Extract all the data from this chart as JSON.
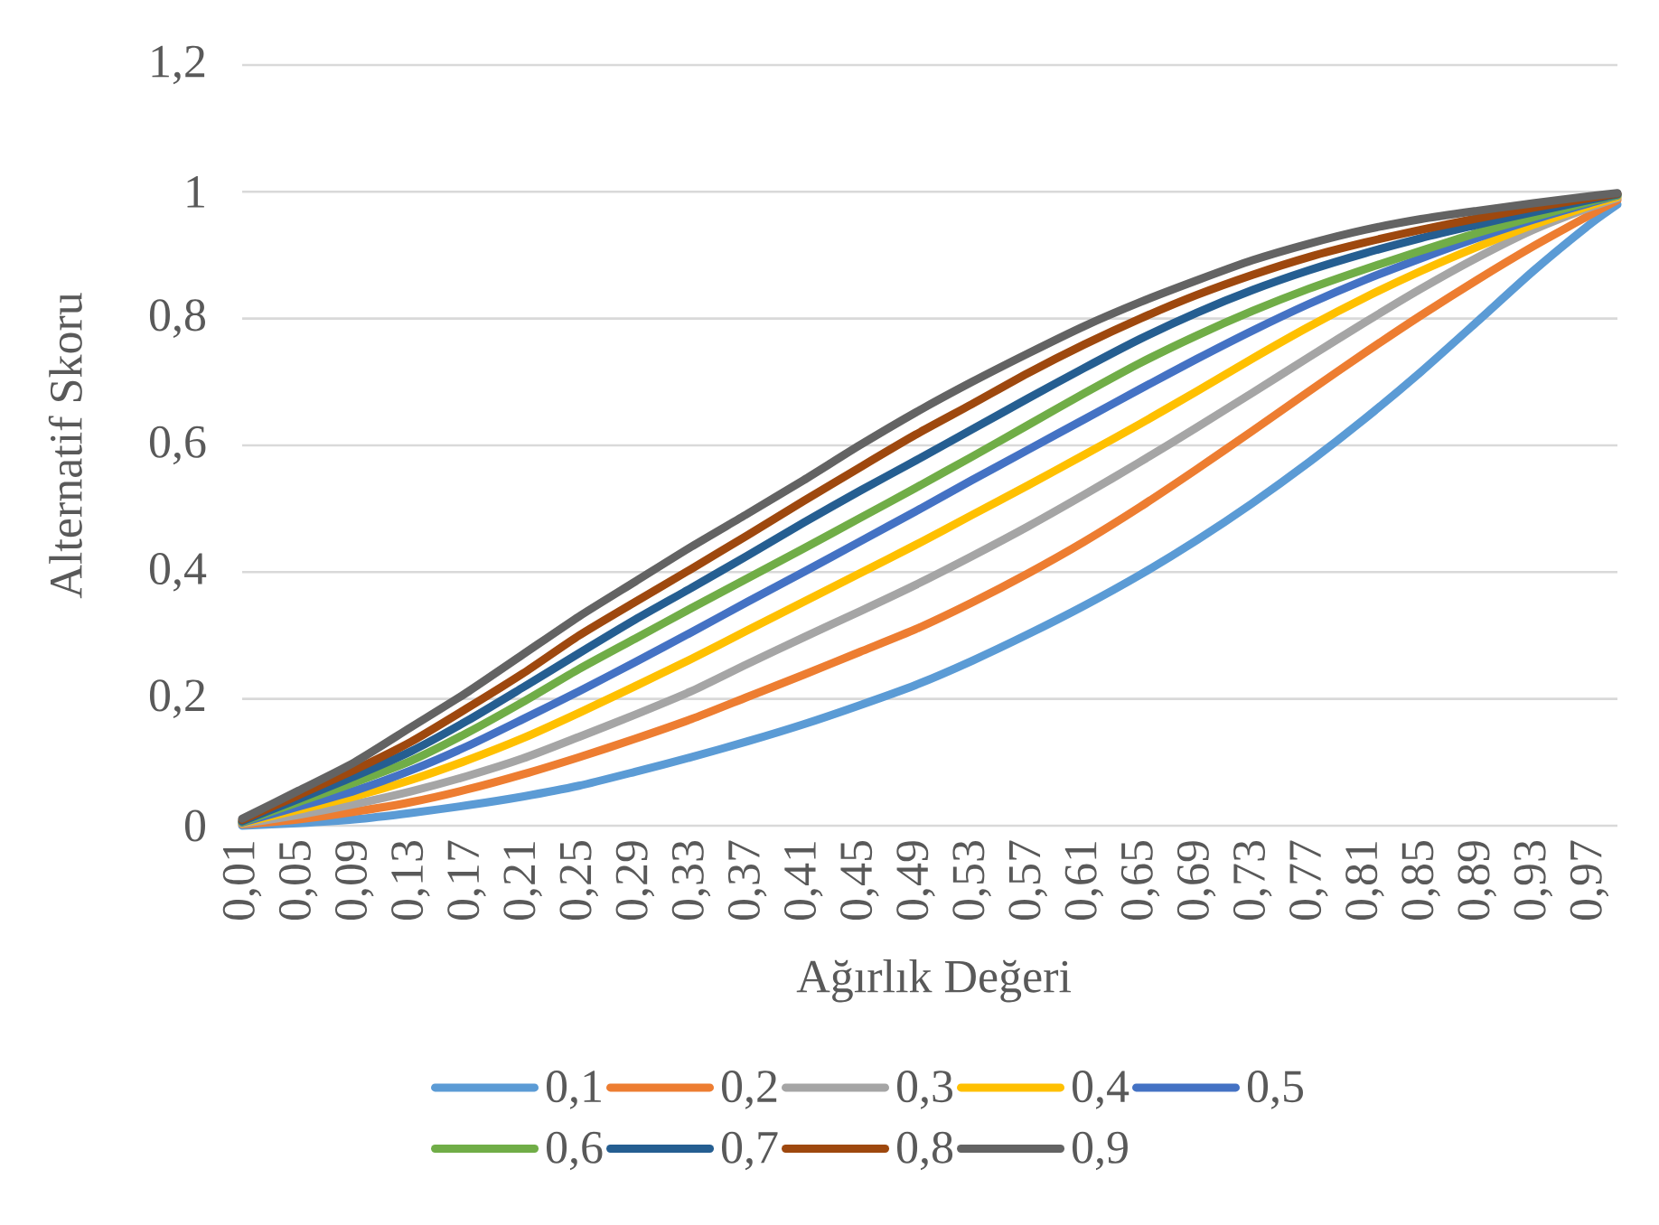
{
  "chart_data": {
    "type": "line",
    "xlabel": "Ağırlık Değeri",
    "ylabel": "Alternatif Skoru",
    "x": [
      0.01,
      0.05,
      0.09,
      0.13,
      0.17,
      0.21,
      0.25,
      0.29,
      0.33,
      0.37,
      0.41,
      0.45,
      0.49,
      0.53,
      0.57,
      0.61,
      0.65,
      0.69,
      0.73,
      0.77,
      0.81,
      0.85,
      0.89,
      0.93,
      0.97,
      0.99
    ],
    "xlim": [
      0.01,
      0.99
    ],
    "xticks": [
      {
        "value": 0.01,
        "label": "0,01"
      },
      {
        "value": 0.05,
        "label": "0,05"
      },
      {
        "value": 0.09,
        "label": "0,09"
      },
      {
        "value": 0.13,
        "label": "0,13"
      },
      {
        "value": 0.17,
        "label": "0,17"
      },
      {
        "value": 0.21,
        "label": "0,21"
      },
      {
        "value": 0.25,
        "label": "0,25"
      },
      {
        "value": 0.29,
        "label": "0,29"
      },
      {
        "value": 0.33,
        "label": "0,33"
      },
      {
        "value": 0.37,
        "label": "0,37"
      },
      {
        "value": 0.41,
        "label": "0,41"
      },
      {
        "value": 0.45,
        "label": "0,45"
      },
      {
        "value": 0.49,
        "label": "0,49"
      },
      {
        "value": 0.53,
        "label": "0,53"
      },
      {
        "value": 0.57,
        "label": "0,57"
      },
      {
        "value": 0.61,
        "label": "0,61"
      },
      {
        "value": 0.65,
        "label": "0,65"
      },
      {
        "value": 0.69,
        "label": "0,69"
      },
      {
        "value": 0.73,
        "label": "0,73"
      },
      {
        "value": 0.77,
        "label": "0,77"
      },
      {
        "value": 0.81,
        "label": "0,81"
      },
      {
        "value": 0.85,
        "label": "0,85"
      },
      {
        "value": 0.89,
        "label": "0,89"
      },
      {
        "value": 0.93,
        "label": "0,93"
      },
      {
        "value": 0.97,
        "label": "0,97"
      }
    ],
    "ylim": [
      0,
      1.2
    ],
    "yticks": [
      0,
      {
        "value": 0.2,
        "label": "0,2"
      },
      {
        "value": 0.4,
        "label": "0,4"
      },
      {
        "value": 0.6,
        "label": "0,6"
      },
      {
        "value": 0.8,
        "label": "0,8"
      },
      1,
      {
        "value": 1.2,
        "label": "1,2"
      }
    ],
    "grid": "y",
    "legend": "bottom",
    "line_style": "solid",
    "series": [
      {
        "name": "0,1",
        "color": "#5b9bd5",
        "values": [
          0.0,
          0.004,
          0.01,
          0.02,
          0.032,
          0.046,
          0.063,
          0.085,
          0.108,
          0.133,
          0.16,
          0.19,
          0.222,
          0.26,
          0.302,
          0.347,
          0.396,
          0.45,
          0.509,
          0.573,
          0.642,
          0.716,
          0.795,
          0.875,
          0.948,
          0.98
        ]
      },
      {
        "name": "0,2",
        "color": "#ed7d31",
        "values": [
          0.002,
          0.01,
          0.022,
          0.037,
          0.057,
          0.081,
          0.108,
          0.137,
          0.168,
          0.203,
          0.238,
          0.274,
          0.31,
          0.352,
          0.398,
          0.448,
          0.503,
          0.562,
          0.623,
          0.685,
          0.746,
          0.805,
          0.861,
          0.914,
          0.963,
          0.987
        ]
      },
      {
        "name": "0,3",
        "color": "#a5a5a5",
        "values": [
          0.003,
          0.017,
          0.034,
          0.054,
          0.078,
          0.106,
          0.14,
          0.175,
          0.212,
          0.255,
          0.297,
          0.338,
          0.38,
          0.425,
          0.472,
          0.522,
          0.574,
          0.628,
          0.683,
          0.739,
          0.794,
          0.847,
          0.896,
          0.94,
          0.975,
          0.99
        ]
      },
      {
        "name": "0,4",
        "color": "#ffc000",
        "values": [
          0.004,
          0.025,
          0.046,
          0.072,
          0.103,
          0.138,
          0.178,
          0.22,
          0.263,
          0.308,
          0.353,
          0.398,
          0.443,
          0.49,
          0.537,
          0.585,
          0.634,
          0.685,
          0.737,
          0.787,
          0.833,
          0.875,
          0.913,
          0.948,
          0.978,
          0.992
        ]
      },
      {
        "name": "0,5",
        "color": "#4472c4",
        "values": [
          0.005,
          0.03,
          0.055,
          0.087,
          0.125,
          0.168,
          0.212,
          0.258,
          0.305,
          0.353,
          0.4,
          0.448,
          0.496,
          0.545,
          0.593,
          0.641,
          0.689,
          0.736,
          0.781,
          0.823,
          0.861,
          0.895,
          0.927,
          0.956,
          0.982,
          0.994
        ]
      },
      {
        "name": "0,6",
        "color": "#70ad47",
        "values": [
          0.006,
          0.037,
          0.068,
          0.102,
          0.146,
          0.195,
          0.247,
          0.295,
          0.343,
          0.39,
          0.437,
          0.485,
          0.533,
          0.582,
          0.632,
          0.682,
          0.73,
          0.773,
          0.812,
          0.847,
          0.878,
          0.907,
          0.935,
          0.96,
          0.984,
          0.995
        ]
      },
      {
        "name": "0,7",
        "color": "#255e91",
        "values": [
          0.007,
          0.042,
          0.078,
          0.117,
          0.165,
          0.218,
          0.272,
          0.325,
          0.375,
          0.426,
          0.478,
          0.528,
          0.576,
          0.625,
          0.674,
          0.722,
          0.768,
          0.809,
          0.845,
          0.876,
          0.903,
          0.927,
          0.948,
          0.968,
          0.987,
          0.996
        ]
      },
      {
        "name": "0,8",
        "color": "#9e480e",
        "values": [
          0.009,
          0.048,
          0.088,
          0.132,
          0.185,
          0.24,
          0.3,
          0.353,
          0.405,
          0.458,
          0.512,
          0.565,
          0.617,
          0.665,
          0.714,
          0.759,
          0.8,
          0.837,
          0.869,
          0.897,
          0.92,
          0.94,
          0.958,
          0.975,
          0.99,
          0.997
        ]
      },
      {
        "name": "0,9",
        "color": "#636363",
        "values": [
          0.011,
          0.055,
          0.1,
          0.155,
          0.21,
          0.27,
          0.33,
          0.385,
          0.44,
          0.492,
          0.545,
          0.6,
          0.652,
          0.7,
          0.745,
          0.788,
          0.826,
          0.86,
          0.892,
          0.918,
          0.94,
          0.957,
          0.97,
          0.982,
          0.993,
          0.998
        ]
      }
    ]
  }
}
